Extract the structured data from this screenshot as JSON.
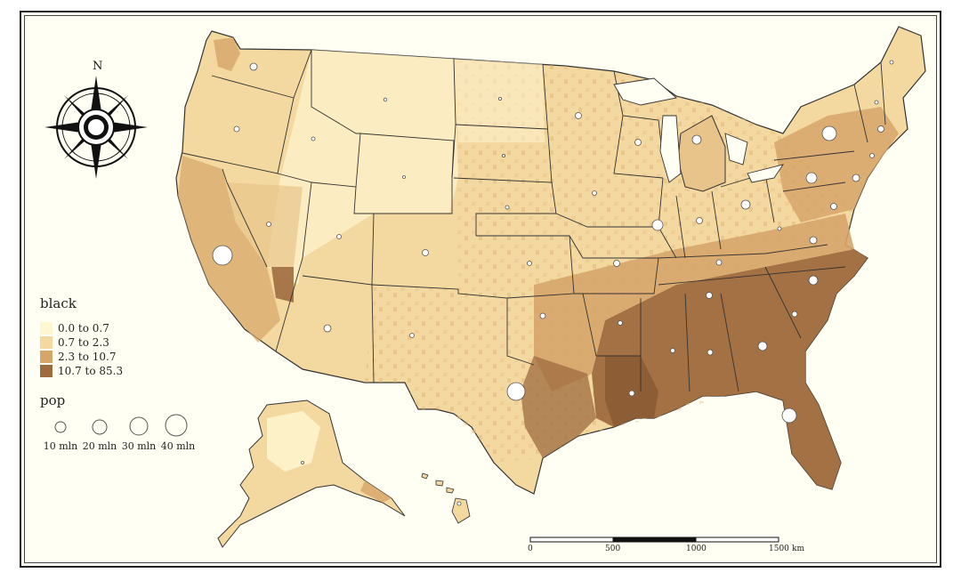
{
  "map": {
    "north_label": "N",
    "legend_black": {
      "title": "black",
      "classes": [
        {
          "label": "0.0 to 0.7",
          "color": "#fff6d2"
        },
        {
          "label": "0.7 to 2.3",
          "color": "#f3d9a0"
        },
        {
          "label": "2.3 to 10.7",
          "color": "#d6a56a"
        },
        {
          "label": "10.7 to 85.3",
          "color": "#9e6b3f"
        }
      ]
    },
    "legend_pop": {
      "title": "pop",
      "items": [
        {
          "label": "10 mln",
          "value": 10
        },
        {
          "label": "20 mln",
          "value": 20
        },
        {
          "label": "30 mln",
          "value": 30
        },
        {
          "label": "40 mln",
          "value": 40
        }
      ]
    },
    "scale_bar": {
      "ticks": [
        "0",
        "500",
        "1000",
        "1500"
      ],
      "unit": "km"
    },
    "colors": {
      "state_border": "#333333",
      "circle_fill": "#ffffff",
      "circle_stroke": "#555555",
      "background": "#fffff4"
    }
  }
}
